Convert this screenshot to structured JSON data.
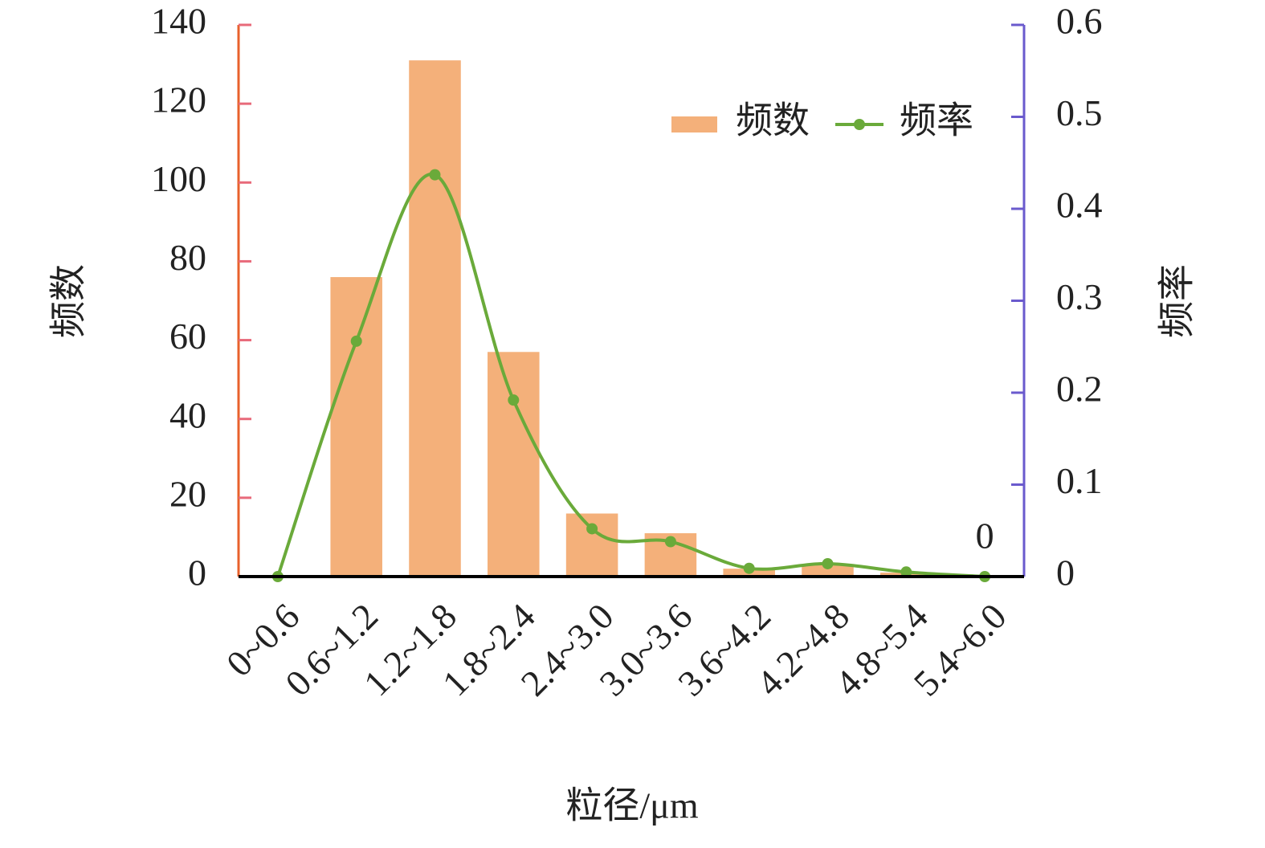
{
  "chart_data": {
    "type": "bar_line",
    "xlabel": "粒径/μm",
    "ylabel": "频数",
    "y2label": "频率",
    "categories": [
      "0~0.6",
      "0.6~1.2",
      "1.2~1.8",
      "1.8~2.4",
      "2.4~3.0",
      "3.0~3.6",
      "3.6~4.2",
      "4.2~4.8",
      "4.8~5.4",
      "5.4~6.0"
    ],
    "series": [
      {
        "name": "频数",
        "type": "bar",
        "color": "#f4b07a",
        "values": [
          0,
          76,
          131,
          57,
          16,
          11,
          2,
          3,
          1,
          0
        ]
      },
      {
        "name": "频率",
        "type": "line",
        "axis": "y2",
        "color": "#6aaa3a",
        "values": [
          0,
          0.256,
          0.437,
          0.192,
          0.052,
          0.038,
          0.009,
          0.014,
          0.005,
          0
        ]
      }
    ],
    "ylim": [
      0,
      140
    ],
    "yticks": [
      0,
      20,
      40,
      60,
      80,
      100,
      120,
      140
    ],
    "y2lim": [
      0,
      0.6
    ],
    "y2ticks": [
      0,
      0.1,
      0.2,
      0.3,
      0.4,
      0.5,
      0.6
    ],
    "y_axis_color": "#e8612c",
    "y2_axis_color": "#6a5acd",
    "legend": "upper-right"
  }
}
